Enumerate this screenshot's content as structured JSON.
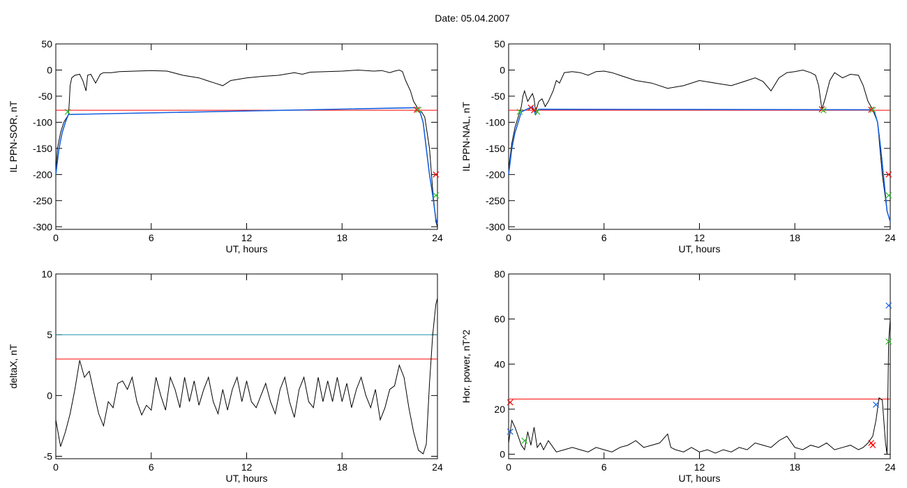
{
  "page": {
    "title": "Date:  05.04.2007"
  },
  "chart_data": [
    {
      "id": "p1",
      "type": "line",
      "xlabel": "UT, hours",
      "ylabel": "IL PPN-SOR, nT",
      "xlim": [
        0,
        24
      ],
      "ylim": [
        -305,
        50
      ],
      "xticks": [
        0,
        6,
        12,
        18,
        24
      ],
      "yticks": [
        50,
        0,
        -50,
        -100,
        -150,
        -200,
        -250,
        -300
      ],
      "grid": false,
      "thresholds": [
        {
          "value": -77,
          "color": "#ff0000"
        }
      ],
      "series": [
        {
          "color": "#000000",
          "x": [
            0,
            0.1,
            0.3,
            0.5,
            0.7,
            0.8,
            0.85,
            0.9,
            1.0,
            1.2,
            1.5,
            1.7,
            1.9,
            2.0,
            2.2,
            2.5,
            2.8,
            3.0,
            3.5,
            4.0,
            5.0,
            6.0,
            7.0,
            8.0,
            9.0,
            9.5,
            10.0,
            10.5,
            11.0,
            12.0,
            13.0,
            14.0,
            15.0,
            15.5,
            16.0,
            17.0,
            18.0,
            19.0,
            20.0,
            20.5,
            21.0,
            21.3,
            21.6,
            21.8,
            22.0,
            22.3,
            22.5,
            22.7,
            22.8,
            23.0,
            23.2,
            23.5,
            23.7,
            23.9,
            24
          ],
          "y": [
            -200,
            -150,
            -120,
            -100,
            -90,
            -85,
            -60,
            -30,
            -15,
            -10,
            -8,
            -20,
            -40,
            -10,
            -8,
            -25,
            -8,
            -5,
            -5,
            -3,
            -2,
            -1,
            -2,
            -10,
            -15,
            -20,
            -25,
            -30,
            -20,
            -15,
            -12,
            -10,
            -5,
            -8,
            -4,
            -3,
            -2,
            0,
            -2,
            -1,
            -5,
            -2,
            0,
            -3,
            -20,
            -40,
            -60,
            -70,
            -78,
            -80,
            -90,
            -150,
            -230,
            -290,
            -300
          ]
        },
        {
          "color": "#1560e0",
          "x": [
            0.0,
            0.2,
            0.4,
            0.6,
            0.7,
            0.8,
            22.7,
            22.9,
            23.1,
            23.3,
            23.5,
            23.7,
            23.9,
            24.0
          ],
          "y": [
            -200,
            -150,
            -120,
            -100,
            -92,
            -85,
            -72,
            -80,
            -100,
            -150,
            -200,
            -240,
            -285,
            -295
          ]
        }
      ],
      "markers": [
        {
          "x": 0.75,
          "y": -80,
          "color": "#2ec02e"
        },
        {
          "x": 22.7,
          "y": -76,
          "color": "#ff0000"
        },
        {
          "x": 22.8,
          "y": -76,
          "color": "#2ec02e"
        },
        {
          "x": 23.9,
          "y": -200,
          "color": "#ff0000"
        },
        {
          "x": 23.9,
          "y": -240,
          "color": "#2ec02e"
        }
      ]
    },
    {
      "id": "p2",
      "type": "line",
      "xlabel": "UT, hours",
      "ylabel": "IL PPN-NAL, nT",
      "xlim": [
        0,
        24
      ],
      "ylim": [
        -305,
        50
      ],
      "xticks": [
        0,
        6,
        12,
        18,
        24
      ],
      "yticks": [
        50,
        0,
        -50,
        -100,
        -150,
        -200,
        -250,
        -300
      ],
      "grid": false,
      "thresholds": [
        {
          "value": -77,
          "color": "#ff0000"
        }
      ],
      "series": [
        {
          "color": "#000000",
          "x": [
            0,
            0.2,
            0.4,
            0.6,
            0.8,
            0.9,
            1.0,
            1.2,
            1.4,
            1.5,
            1.6,
            1.7,
            1.8,
            1.9,
            2.1,
            2.3,
            2.5,
            2.8,
            3.0,
            3.2,
            3.5,
            4.0,
            4.5,
            5.0,
            5.5,
            6.0,
            6.5,
            7.0,
            8.0,
            9.0,
            10.0,
            11.0,
            12.0,
            13.0,
            14.0,
            15.0,
            15.5,
            16.0,
            16.5,
            17.0,
            17.5,
            18.0,
            18.5,
            19.0,
            19.3,
            19.5,
            19.7,
            19.9,
            20.2,
            20.5,
            21.0,
            21.5,
            22.0,
            22.3,
            22.6,
            22.9,
            23.2,
            23.5,
            23.8,
            24
          ],
          "y": [
            -190,
            -140,
            -110,
            -90,
            -70,
            -50,
            -40,
            -60,
            -50,
            -45,
            -55,
            -80,
            -70,
            -60,
            -55,
            -70,
            -60,
            -40,
            -20,
            -25,
            -5,
            -3,
            -5,
            -10,
            -3,
            -2,
            -5,
            -10,
            -20,
            -25,
            -35,
            -30,
            -20,
            -25,
            -30,
            -20,
            -15,
            -22,
            -40,
            -15,
            -5,
            -3,
            0,
            -5,
            -10,
            -30,
            -75,
            -55,
            -20,
            -5,
            -15,
            -8,
            -10,
            -30,
            -60,
            -76,
            -100,
            -200,
            -270,
            -290
          ]
        },
        {
          "color": "#1560e0",
          "x": [
            0.0,
            0.2,
            0.4,
            0.6,
            0.8,
            1.5,
            1.7,
            1.9,
            22.8,
            23.0,
            23.2,
            23.4,
            23.6,
            23.8,
            24.0
          ],
          "y": [
            -200,
            -150,
            -120,
            -100,
            -80,
            -70,
            -85,
            -75,
            -76,
            -80,
            -100,
            -150,
            -210,
            -270,
            -290
          ]
        }
      ],
      "markers": [
        {
          "x": 0.7,
          "y": -80,
          "color": "#2ec02e"
        },
        {
          "x": 1.4,
          "y": -72,
          "color": "#ff0000"
        },
        {
          "x": 1.6,
          "y": -77,
          "color": "#ff0000"
        },
        {
          "x": 1.8,
          "y": -80,
          "color": "#2ec02e"
        },
        {
          "x": 19.7,
          "y": -75,
          "color": "#ff0000"
        },
        {
          "x": 19.8,
          "y": -77,
          "color": "#2ec02e"
        },
        {
          "x": 22.8,
          "y": -76,
          "color": "#ff0000"
        },
        {
          "x": 22.9,
          "y": -76,
          "color": "#2ec02e"
        },
        {
          "x": 23.9,
          "y": -200,
          "color": "#ff0000"
        },
        {
          "x": 23.9,
          "y": -240,
          "color": "#2ec02e"
        }
      ]
    },
    {
      "id": "p3",
      "type": "line",
      "xlabel": "UT, hours",
      "ylabel": "deltaX, nT",
      "xlim": [
        0,
        24
      ],
      "ylim": [
        -5.2,
        10
      ],
      "xticks": [
        0,
        6,
        12,
        18,
        24
      ],
      "yticks": [
        10,
        5,
        0,
        -5
      ],
      "grid": false,
      "thresholds": [
        {
          "value": 5,
          "color": "#1f8fa8"
        },
        {
          "value": 3,
          "color": "#ff0000"
        }
      ],
      "series": [
        {
          "color": "#000000",
          "x": [
            0,
            0.3,
            0.6,
            0.9,
            1.2,
            1.5,
            1.8,
            2.1,
            2.4,
            2.7,
            3.0,
            3.3,
            3.6,
            3.9,
            4.2,
            4.5,
            4.8,
            5.1,
            5.4,
            5.7,
            6.0,
            6.3,
            6.6,
            6.9,
            7.2,
            7.5,
            7.8,
            8.1,
            8.4,
            8.7,
            9.0,
            9.3,
            9.6,
            9.9,
            10.2,
            10.5,
            10.8,
            11.1,
            11.4,
            11.7,
            12.0,
            12.3,
            12.6,
            12.9,
            13.2,
            13.5,
            13.8,
            14.1,
            14.4,
            14.7,
            15.0,
            15.3,
            15.6,
            15.9,
            16.2,
            16.5,
            16.8,
            17.1,
            17.4,
            17.7,
            18.0,
            18.3,
            18.6,
            18.9,
            19.2,
            19.5,
            19.8,
            20.1,
            20.4,
            20.7,
            21.0,
            21.3,
            21.6,
            21.9,
            22.2,
            22.5,
            22.8,
            23.1,
            23.3,
            23.5,
            23.7,
            23.9,
            24
          ],
          "y": [
            -2,
            -4.2,
            -3,
            -1.5,
            0.5,
            2.9,
            1.5,
            2.0,
            0.2,
            -1.5,
            -2.5,
            -0.5,
            -1.0,
            1.0,
            1.2,
            0.5,
            1.5,
            -0.5,
            -1.6,
            -0.8,
            -1.2,
            1.5,
            0,
            -1.2,
            1.5,
            0.5,
            -1.0,
            1.5,
            -0.5,
            1.2,
            -0.8,
            0.5,
            1.5,
            -0.5,
            -1.5,
            0.5,
            -1.2,
            0.5,
            1.5,
            -0.5,
            1.2,
            -0.5,
            -1.0,
            0,
            1.0,
            -0.5,
            -1.5,
            0.5,
            1.5,
            -0.5,
            -1.8,
            0.5,
            1.5,
            -0.5,
            -1.0,
            1.5,
            -0.5,
            1.2,
            -0.5,
            1.5,
            -0.5,
            1.0,
            -1.0,
            0.5,
            1.5,
            0,
            -1.0,
            0.5,
            -2.0,
            -1.0,
            0.5,
            0.8,
            2.5,
            1.5,
            -1.0,
            -3.0,
            -4.5,
            -4.8,
            -4.0,
            1.0,
            5.0,
            7.5,
            8.0
          ]
        }
      ],
      "markers": []
    },
    {
      "id": "p4",
      "type": "line",
      "xlabel": "UT, hours",
      "ylabel": "Hor. power, nT^2",
      "xlim": [
        0,
        24
      ],
      "ylim": [
        -2,
        80
      ],
      "xticks": [
        0,
        6,
        12,
        18,
        24
      ],
      "yticks": [
        80,
        60,
        40,
        20,
        0
      ],
      "grid": false,
      "thresholds": [
        {
          "value": 24.5,
          "color": "#ff0000"
        }
      ],
      "series": [
        {
          "color": "#000000",
          "x": [
            0,
            0.2,
            0.4,
            0.6,
            0.8,
            1.0,
            1.2,
            1.4,
            1.6,
            1.8,
            2.0,
            2.2,
            2.5,
            2.8,
            3.0,
            3.5,
            4.0,
            4.5,
            5.0,
            5.5,
            6.0,
            6.5,
            7.0,
            7.5,
            8.0,
            8.5,
            9.0,
            9.5,
            10.0,
            10.2,
            10.5,
            11.0,
            11.5,
            12.0,
            12.5,
            13.0,
            13.5,
            14.0,
            14.5,
            15.0,
            15.5,
            16.0,
            16.5,
            17.0,
            17.5,
            18.0,
            18.5,
            19.0,
            19.5,
            20.0,
            20.5,
            21.0,
            21.5,
            22.0,
            22.3,
            22.6,
            22.9,
            23.1,
            23.3,
            23.5,
            23.7,
            23.8,
            23.9,
            24
          ],
          "y": [
            5,
            15,
            12,
            8,
            4,
            2,
            10,
            4,
            12,
            3,
            5,
            2,
            6,
            3,
            1,
            2,
            3,
            2,
            1,
            3,
            2,
            1,
            3,
            4,
            6,
            3,
            4,
            5,
            9,
            3,
            2,
            1,
            3,
            1,
            2,
            0.5,
            2,
            1,
            3,
            2,
            5,
            4,
            3,
            6,
            8,
            3,
            2,
            4,
            3,
            5,
            2,
            3,
            4,
            2,
            3,
            5,
            8,
            15,
            25,
            24,
            5,
            0,
            50,
            60
          ]
        }
      ],
      "markers": [
        {
          "x": 0.1,
          "y": 23,
          "color": "#ff0000"
        },
        {
          "x": 0.1,
          "y": 10,
          "color": "#1560e0"
        },
        {
          "x": 1.0,
          "y": 6,
          "color": "#2ec02e"
        },
        {
          "x": 22.8,
          "y": 5,
          "color": "#ff0000"
        },
        {
          "x": 22.9,
          "y": 4,
          "color": "#ff0000"
        },
        {
          "x": 23.1,
          "y": 22,
          "color": "#1560e0"
        },
        {
          "x": 23.9,
          "y": 66,
          "color": "#1560e0"
        },
        {
          "x": 23.9,
          "y": 50,
          "color": "#2ec02e"
        }
      ]
    }
  ]
}
